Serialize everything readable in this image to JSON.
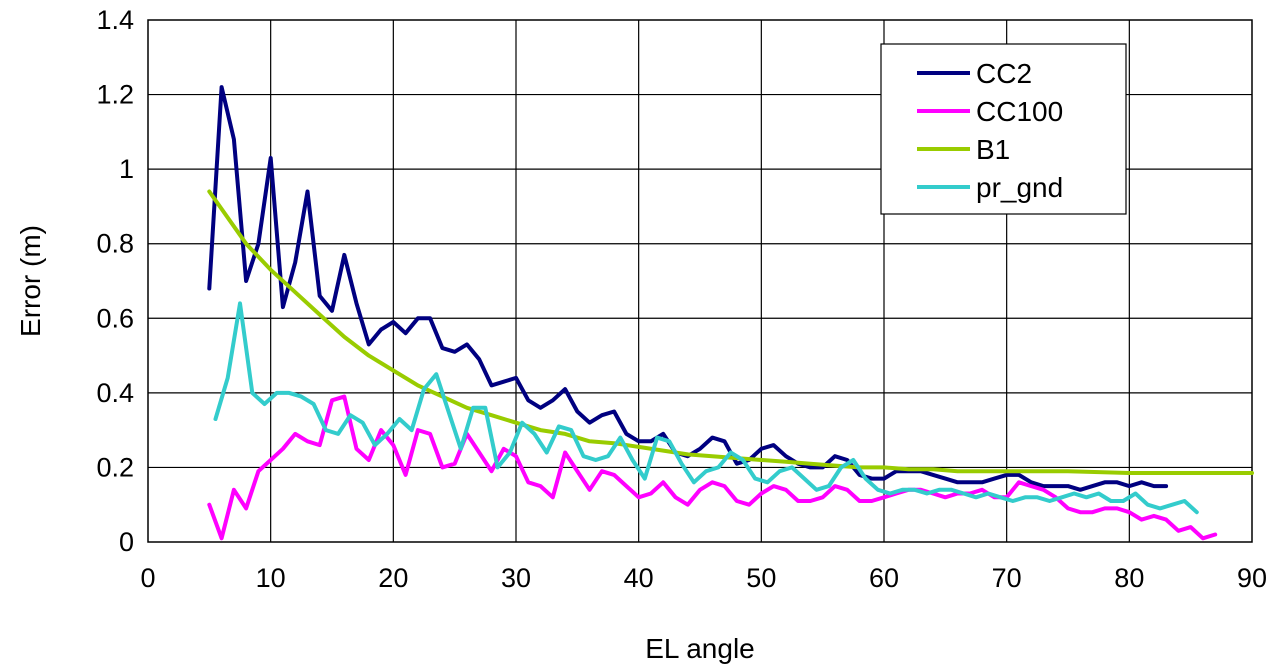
{
  "chart_data": {
    "type": "line",
    "title": "",
    "xlabel": "EL angle",
    "ylabel": "Error (m)",
    "xlim": [
      0,
      90
    ],
    "ylim": [
      0,
      1.4
    ],
    "xticks": [
      0,
      10,
      20,
      30,
      40,
      50,
      60,
      70,
      80,
      90
    ],
    "yticks": [
      0,
      0.2,
      0.4,
      0.6,
      0.8,
      1,
      1.2,
      1.4
    ],
    "xtick_labels": [
      "0",
      "10",
      "20",
      "30",
      "40",
      "50",
      "60",
      "70",
      "80",
      "90"
    ],
    "ytick_labels": [
      "0",
      "0.2",
      "0.4",
      "0.6",
      "0.8",
      "1",
      "1.2",
      "1.4"
    ],
    "grid": true,
    "legend_position": "top-right",
    "series": [
      {
        "name": "CC2",
        "color": "#000080",
        "x": [
          5,
          6,
          7,
          8,
          9,
          10,
          11,
          12,
          13,
          14,
          15,
          16,
          17,
          18,
          19,
          20,
          21,
          22,
          23,
          24,
          25,
          26,
          27,
          28,
          29,
          30,
          31,
          32,
          33,
          34,
          35,
          36,
          37,
          38,
          39,
          40,
          41,
          42,
          43,
          44,
          45,
          46,
          47,
          48,
          49,
          50,
          51,
          52,
          53,
          54,
          55,
          56,
          57,
          58,
          59,
          60,
          61,
          62,
          63,
          64,
          65,
          66,
          67,
          68,
          69,
          70,
          71,
          72,
          73,
          74,
          75,
          76,
          77,
          78,
          79,
          80,
          81,
          82,
          83
        ],
        "y": [
          0.68,
          1.22,
          1.08,
          0.7,
          0.8,
          1.03,
          0.63,
          0.75,
          0.94,
          0.66,
          0.62,
          0.77,
          0.64,
          0.53,
          0.57,
          0.59,
          0.56,
          0.6,
          0.6,
          0.52,
          0.51,
          0.53,
          0.49,
          0.42,
          0.43,
          0.44,
          0.38,
          0.36,
          0.38,
          0.41,
          0.35,
          0.32,
          0.34,
          0.35,
          0.29,
          0.27,
          0.27,
          0.29,
          0.24,
          0.23,
          0.25,
          0.28,
          0.27,
          0.21,
          0.22,
          0.25,
          0.26,
          0.23,
          0.21,
          0.2,
          0.2,
          0.23,
          0.22,
          0.18,
          0.17,
          0.17,
          0.19,
          0.19,
          0.19,
          0.18,
          0.17,
          0.16,
          0.16,
          0.16,
          0.17,
          0.18,
          0.18,
          0.16,
          0.15,
          0.15,
          0.15,
          0.14,
          0.15,
          0.16,
          0.16,
          0.15,
          0.16,
          0.15,
          0.15
        ]
      },
      {
        "name": "CC100",
        "color": "#FF00FF",
        "x": [
          5,
          6,
          7,
          8,
          9,
          10,
          11,
          12,
          13,
          14,
          15,
          16,
          17,
          18,
          19,
          20,
          21,
          22,
          23,
          24,
          25,
          26,
          27,
          28,
          29,
          30,
          31,
          32,
          33,
          34,
          35,
          36,
          37,
          38,
          39,
          40,
          41,
          42,
          43,
          44,
          45,
          46,
          47,
          48,
          49,
          50,
          51,
          52,
          53,
          54,
          55,
          56,
          57,
          58,
          59,
          60,
          61,
          62,
          63,
          64,
          65,
          66,
          67,
          68,
          69,
          70,
          71,
          72,
          73,
          74,
          75,
          76,
          77,
          78,
          79,
          80,
          81,
          82,
          83,
          84,
          85,
          86,
          87
        ],
        "y": [
          0.1,
          0.01,
          0.14,
          0.09,
          0.19,
          0.22,
          0.25,
          0.29,
          0.27,
          0.26,
          0.38,
          0.39,
          0.25,
          0.22,
          0.3,
          0.26,
          0.18,
          0.3,
          0.29,
          0.2,
          0.21,
          0.29,
          0.24,
          0.19,
          0.25,
          0.23,
          0.16,
          0.15,
          0.12,
          0.24,
          0.19,
          0.14,
          0.19,
          0.18,
          0.15,
          0.12,
          0.13,
          0.16,
          0.12,
          0.1,
          0.14,
          0.16,
          0.15,
          0.11,
          0.1,
          0.13,
          0.15,
          0.14,
          0.11,
          0.11,
          0.12,
          0.15,
          0.14,
          0.11,
          0.11,
          0.12,
          0.13,
          0.14,
          0.14,
          0.13,
          0.12,
          0.13,
          0.13,
          0.14,
          0.12,
          0.12,
          0.16,
          0.15,
          0.14,
          0.12,
          0.09,
          0.08,
          0.08,
          0.09,
          0.09,
          0.08,
          0.06,
          0.07,
          0.06,
          0.03,
          0.04,
          0.01,
          0.02
        ]
      },
      {
        "name": "B1",
        "color": "#99CC00",
        "x": [
          5,
          8,
          10,
          12,
          14,
          16,
          18,
          20,
          22,
          24,
          26,
          28,
          30,
          32,
          34,
          36,
          38,
          40,
          42,
          44,
          46,
          48,
          50,
          52,
          54,
          56,
          58,
          60,
          62,
          64,
          66,
          68,
          70,
          75,
          80,
          85,
          90
        ],
        "y": [
          0.94,
          0.8,
          0.73,
          0.67,
          0.61,
          0.55,
          0.5,
          0.46,
          0.42,
          0.39,
          0.36,
          0.34,
          0.32,
          0.3,
          0.29,
          0.27,
          0.265,
          0.255,
          0.245,
          0.235,
          0.23,
          0.225,
          0.22,
          0.215,
          0.21,
          0.205,
          0.2,
          0.2,
          0.195,
          0.195,
          0.19,
          0.19,
          0.19,
          0.19,
          0.185,
          0.185,
          0.185
        ]
      },
      {
        "name": "pr_gnd",
        "color": "#33CCCC",
        "x": [
          5.5,
          6.5,
          7.5,
          8.5,
          9.5,
          10.5,
          11.5,
          12.5,
          13.5,
          14.5,
          15.5,
          16.5,
          17.5,
          18.5,
          19.5,
          20.5,
          21.5,
          22.5,
          23.5,
          24.5,
          25.5,
          26.5,
          27.5,
          28.5,
          29.5,
          30.5,
          31.5,
          32.5,
          33.5,
          34.5,
          35.5,
          36.5,
          37.5,
          38.5,
          39.5,
          40.5,
          41.5,
          42.5,
          43.5,
          44.5,
          45.5,
          46.5,
          47.5,
          48.5,
          49.5,
          50.5,
          51.5,
          52.5,
          53.5,
          54.5,
          55.5,
          56.5,
          57.5,
          58.5,
          59.5,
          60.5,
          61.5,
          62.5,
          63.5,
          64.5,
          65.5,
          66.5,
          67.5,
          68.5,
          69.5,
          70.5,
          71.5,
          72.5,
          73.5,
          74.5,
          75.5,
          76.5,
          77.5,
          78.5,
          79.5,
          80.5,
          81.5,
          82.5,
          83.5,
          84.5,
          85.5
        ],
        "y": [
          0.33,
          0.44,
          0.64,
          0.4,
          0.37,
          0.4,
          0.4,
          0.39,
          0.37,
          0.3,
          0.29,
          0.34,
          0.32,
          0.26,
          0.29,
          0.33,
          0.3,
          0.41,
          0.45,
          0.35,
          0.25,
          0.36,
          0.36,
          0.2,
          0.24,
          0.32,
          0.29,
          0.24,
          0.31,
          0.3,
          0.23,
          0.22,
          0.23,
          0.28,
          0.22,
          0.17,
          0.28,
          0.27,
          0.21,
          0.16,
          0.19,
          0.2,
          0.24,
          0.22,
          0.17,
          0.16,
          0.19,
          0.2,
          0.17,
          0.14,
          0.15,
          0.2,
          0.22,
          0.17,
          0.14,
          0.13,
          0.14,
          0.14,
          0.13,
          0.14,
          0.14,
          0.13,
          0.12,
          0.13,
          0.12,
          0.11,
          0.12,
          0.12,
          0.11,
          0.12,
          0.13,
          0.12,
          0.13,
          0.11,
          0.11,
          0.13,
          0.1,
          0.09,
          0.1,
          0.11,
          0.08
        ]
      }
    ]
  }
}
